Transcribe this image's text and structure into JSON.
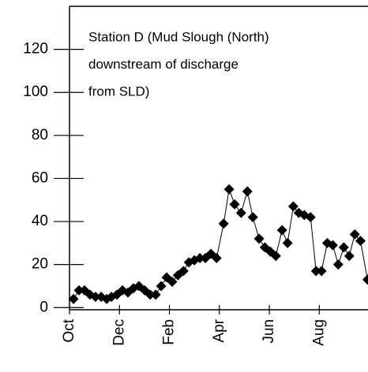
{
  "chart_data": {
    "type": "line",
    "annotation": [
      "Station D (Mud Slough (North)",
      "downstream of discharge",
      "from SLD)"
    ],
    "x": [
      0.16,
      0.38,
      0.6,
      0.82,
      1.04,
      1.27,
      1.49,
      1.68,
      1.9,
      2.12,
      2.34,
      2.56,
      2.78,
      3.01,
      3.23,
      3.45,
      3.67,
      3.89,
      4.11,
      4.34,
      4.56,
      4.78,
      5.0,
      5.22,
      5.44,
      5.66,
      5.89,
      6.17,
      6.39,
      6.61,
      6.87,
      7.12,
      7.34,
      7.59,
      7.82,
      8.04,
      8.26,
      8.51,
      8.73,
      8.96,
      9.18,
      9.4,
      9.65,
      9.87,
      10.09,
      10.32,
      10.54,
      10.76,
      10.98,
      11.2,
      11.42,
      11.65,
      11.93
    ],
    "series": [
      {
        "color": "#000000",
        "values": [
          4,
          8,
          8,
          6,
          5,
          5,
          4,
          5,
          6,
          8,
          7,
          9,
          10,
          8,
          6,
          6,
          10,
          14,
          12,
          15,
          17,
          21,
          22,
          23,
          23,
          25,
          23,
          39,
          55,
          48,
          44,
          54,
          42,
          32,
          28,
          26,
          24,
          36,
          30,
          47,
          44,
          43,
          42,
          17,
          17,
          30,
          29,
          20,
          28,
          24,
          34,
          31,
          13
        ]
      }
    ],
    "xlim": [
      0,
      11.95
    ],
    "xticks": [
      {
        "value": 0,
        "label": "Oct"
      },
      {
        "value": 2,
        "label": "Dec"
      },
      {
        "value": 4,
        "label": "Feb"
      },
      {
        "value": 6,
        "label": "Apr"
      },
      {
        "value": 8,
        "label": "Jun"
      },
      {
        "value": 10,
        "label": "Aug"
      }
    ],
    "ylim": [
      -1,
      140
    ],
    "yticks": [
      0,
      20,
      40,
      60,
      80,
      100,
      120
    ]
  }
}
